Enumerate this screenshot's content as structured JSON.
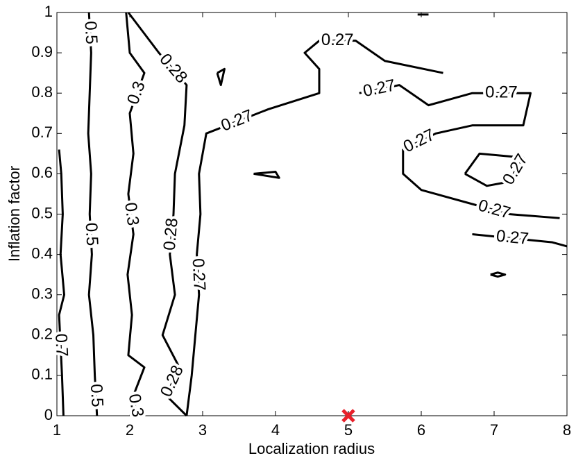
{
  "chart_data": {
    "type": "contour",
    "xlabel": "Localization radius",
    "ylabel": "Inflation factor",
    "xlim": [
      1,
      8
    ],
    "ylim": [
      0,
      1
    ],
    "xticks": [
      1,
      2,
      3,
      4,
      5,
      6,
      7,
      8
    ],
    "yticks": [
      0,
      0.1,
      0.2,
      0.3,
      0.4,
      0.5,
      0.6,
      0.7,
      0.8,
      0.9,
      1
    ],
    "line_color": "#000000",
    "contours": [
      {
        "level": 0.7,
        "x": [
          1.09,
          1.07,
          1.03,
          1.1,
          1.05,
          1.08,
          1.06,
          1.03
        ],
        "y": [
          0,
          0.1,
          0.25,
          0.3,
          0.4,
          0.5,
          0.6,
          0.66
        ]
      },
      {
        "level": 0.5,
        "x": [
          1.44,
          1.47,
          1.45,
          1.43,
          1.47,
          1.45,
          1.48,
          1.44,
          1.5,
          1.52,
          1.55
        ],
        "y": [
          1,
          0.9,
          0.8,
          0.7,
          0.6,
          0.5,
          0.4,
          0.3,
          0.2,
          0.1,
          0
        ]
      },
      {
        "level": 0.3,
        "x": [
          1.95,
          2.0,
          2.2,
          2.0,
          2.05,
          1.98,
          2.05,
          1.97,
          2.03,
          1.98,
          2.2,
          2.05,
          2.1
        ],
        "y": [
          1,
          0.9,
          0.85,
          0.75,
          0.65,
          0.55,
          0.45,
          0.35,
          0.25,
          0.15,
          0.12,
          0.05,
          0
        ]
      },
      {
        "level": 0.28,
        "x": [
          1.98,
          2.4,
          2.78,
          2.75,
          2.62,
          2.6,
          2.55,
          2.62,
          2.45,
          2.68,
          2.5,
          2.78
        ],
        "y": [
          1,
          0.9,
          0.82,
          0.72,
          0.6,
          0.5,
          0.4,
          0.3,
          0.2,
          0.12,
          0.05,
          0
        ]
      },
      {
        "level": 0.27,
        "x": [
          2.78,
          2.85,
          2.9,
          2.95,
          2.92,
          2.97,
          2.95,
          3.05,
          3.9,
          4.6,
          4.6,
          4.4,
          4.6,
          5.1,
          5.5,
          6.3
        ],
        "y": [
          0,
          0.1,
          0.2,
          0.3,
          0.4,
          0.5,
          0.6,
          0.7,
          0.76,
          0.8,
          0.86,
          0.9,
          0.93,
          0.93,
          0.88,
          0.85
        ]
      },
      {
        "level": 0.27,
        "x": [
          5.15,
          5.7,
          6.1,
          6.7,
          7.5,
          7.4,
          7.1,
          6.7,
          6.2,
          5.75,
          5.75,
          6.0,
          6.8,
          7.2,
          7.9
        ],
        "y": [
          0.8,
          0.82,
          0.77,
          0.8,
          0.8,
          0.72,
          0.72,
          0.72,
          0.7,
          0.66,
          0.6,
          0.56,
          0.52,
          0.5,
          0.49
        ]
      },
      {
        "level": 0.27,
        "x": [
          6.7,
          7.8,
          8
        ],
        "y": [
          0.45,
          0.43,
          0.42
        ]
      },
      {
        "level": 0.27,
        "x": [
          6.6,
          6.8,
          7.4,
          7.2,
          6.9,
          6.6
        ],
        "y": [
          0.6,
          0.65,
          0.64,
          0.58,
          0.57,
          0.6
        ]
      },
      {
        "level": 0.27,
        "x": [
          3.2,
          3.3,
          3.25,
          3.2
        ],
        "y": [
          0.85,
          0.86,
          0.82,
          0.85
        ]
      },
      {
        "level": 0.27,
        "x": [
          3.7,
          4.0,
          4.05,
          3.7
        ],
        "y": [
          0.6,
          0.605,
          0.59,
          0.6
        ]
      },
      {
        "level": 0.27,
        "x": [
          6.95,
          7.05,
          7.15,
          7.05,
          6.95
        ],
        "y": [
          0.35,
          0.355,
          0.35,
          0.345,
          0.35
        ]
      },
      {
        "level": 0.27,
        "x": [
          5.95,
          6.1
        ],
        "y": [
          0.995,
          0.995
        ]
      }
    ],
    "marker": {
      "x": 5,
      "y": 0,
      "color": "#e8202a"
    }
  }
}
